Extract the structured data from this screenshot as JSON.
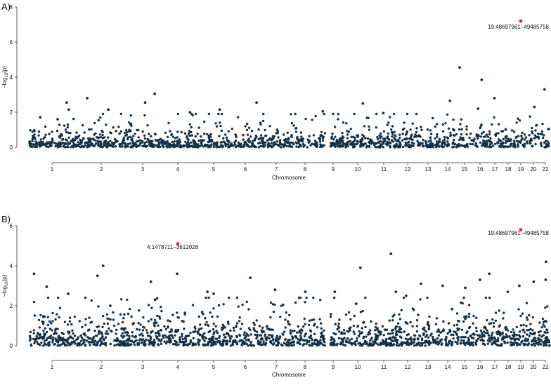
{
  "figure": {
    "point_color": "#12324a",
    "highlight_color": "#e8203a"
  },
  "chart_data": [
    {
      "type": "scatter",
      "panel_label": "A)",
      "xlabel": "Chromosome",
      "ylabel_parts": {
        "base": "−log",
        "sub": "10",
        "tail": "(p)"
      },
      "ylim": [
        0,
        8
      ],
      "yticks": [
        0,
        2,
        4,
        6,
        8
      ],
      "chromosomes": [
        "1",
        "2",
        "3",
        "4",
        "5",
        "6",
        "7",
        "8",
        "9",
        "10",
        "11",
        "12",
        "13",
        "14",
        "15",
        "16",
        "17",
        "18",
        "19",
        "20",
        "22"
      ],
      "highlight_points": [
        {
          "chr": "19",
          "y": 7.2,
          "label": "19:48697961−49485758"
        }
      ],
      "notable_points": [
        {
          "chr": "1",
          "y": 1.6
        },
        {
          "chr": "1",
          "y": 2.15
        },
        {
          "chr": "1",
          "y": 2.55
        },
        {
          "chr": "2",
          "y": 2.15
        },
        {
          "chr": "2",
          "y": 2.8
        },
        {
          "chr": "3",
          "y": 2.55
        },
        {
          "chr": "3",
          "y": 3.05
        },
        {
          "chr": "4",
          "y": 2.0
        },
        {
          "chr": "5",
          "y": 2.15
        },
        {
          "chr": "6",
          "y": 2.55
        },
        {
          "chr": "9",
          "y": 2.05
        },
        {
          "chr": "10",
          "y": 2.5
        },
        {
          "chr": "11",
          "y": 1.95
        },
        {
          "chr": "14",
          "y": 2.65
        },
        {
          "chr": "15",
          "y": 4.55
        },
        {
          "chr": "16",
          "y": 2.2
        },
        {
          "chr": "16",
          "y": 3.85
        },
        {
          "chr": "17",
          "y": 2.8
        },
        {
          "chr": "20",
          "y": 2.3
        },
        {
          "chr": "22",
          "y": 3.3
        }
      ]
    },
    {
      "type": "scatter",
      "panel_label": "B)",
      "xlabel": "Chromosome",
      "ylabel_parts": {
        "base": "−log",
        "sub": "10",
        "tail": "(p)"
      },
      "ylim": [
        0,
        6
      ],
      "yticks": [
        0,
        2,
        4,
        6
      ],
      "chromosomes": [
        "1",
        "2",
        "3",
        "4",
        "5",
        "6",
        "7",
        "8",
        "9",
        "10",
        "11",
        "12",
        "13",
        "14",
        "15",
        "16",
        "17",
        "18",
        "19",
        "20",
        "22"
      ],
      "highlight_points": [
        {
          "chr": "4",
          "y": 5.1,
          "label": "4:1478711−3612028"
        },
        {
          "chr": "19",
          "y": 5.8,
          "label": "19:48697961−49485758"
        }
      ],
      "notable_points": [
        {
          "chr": "1",
          "y": 2.6
        },
        {
          "chr": "1",
          "y": 3.6
        },
        {
          "chr": "1",
          "y": 2.95
        },
        {
          "chr": "2",
          "y": 2.0
        },
        {
          "chr": "2",
          "y": 4.0
        },
        {
          "chr": "2",
          "y": 3.5
        },
        {
          "chr": "3",
          "y": 3.2
        },
        {
          "chr": "3",
          "y": 2.3
        },
        {
          "chr": "4",
          "y": 3.6
        },
        {
          "chr": "5",
          "y": 2.7
        },
        {
          "chr": "5",
          "y": 2.6
        },
        {
          "chr": "6",
          "y": 3.4
        },
        {
          "chr": "7",
          "y": 2.8
        },
        {
          "chr": "8",
          "y": 2.7
        },
        {
          "chr": "9",
          "y": 2.7
        },
        {
          "chr": "10",
          "y": 3.9
        },
        {
          "chr": "10",
          "y": 2.1
        },
        {
          "chr": "11",
          "y": 4.6
        },
        {
          "chr": "11",
          "y": 2.7
        },
        {
          "chr": "12",
          "y": 2.5
        },
        {
          "chr": "13",
          "y": 3.1
        },
        {
          "chr": "14",
          "y": 3.0
        },
        {
          "chr": "15",
          "y": 2.9
        },
        {
          "chr": "16",
          "y": 3.3
        },
        {
          "chr": "17",
          "y": 3.6
        },
        {
          "chr": "18",
          "y": 2.7
        },
        {
          "chr": "19",
          "y": 3.0
        },
        {
          "chr": "20",
          "y": 3.2
        },
        {
          "chr": "22",
          "y": 4.2
        },
        {
          "chr": "22",
          "y": 3.3
        }
      ]
    }
  ]
}
